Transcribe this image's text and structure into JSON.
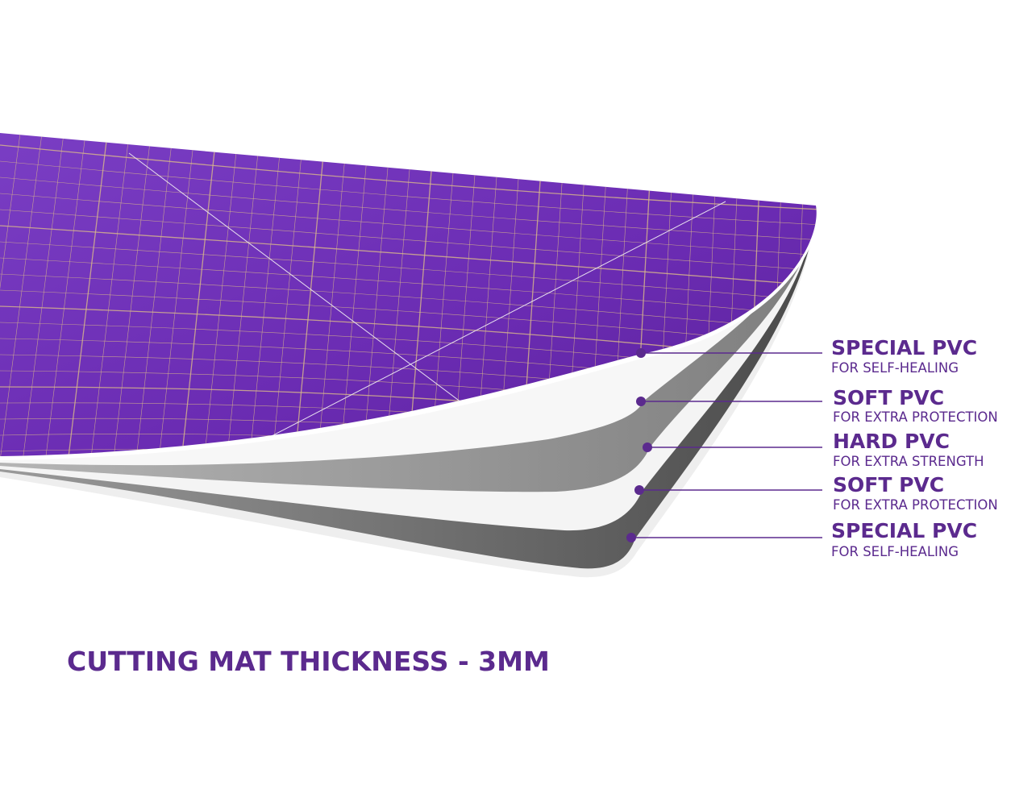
{
  "layers": [
    {
      "title": "SPECIAL PVC",
      "subtitle": "FOR SELF-HEALING"
    },
    {
      "title": "SOFT PVC",
      "subtitle": "FOR EXTRA PROTECTION"
    },
    {
      "title": "HARD PVC",
      "subtitle": "FOR EXTRA STRENGTH"
    },
    {
      "title": "SOFT PVC",
      "subtitle": "FOR EXTRA PROTECTION"
    },
    {
      "title": "SPECIAL PVC",
      "subtitle": "FOR SELF-HEALING"
    }
  ],
  "caption": "CUTTING MAT THICKNESS - 3MM"
}
